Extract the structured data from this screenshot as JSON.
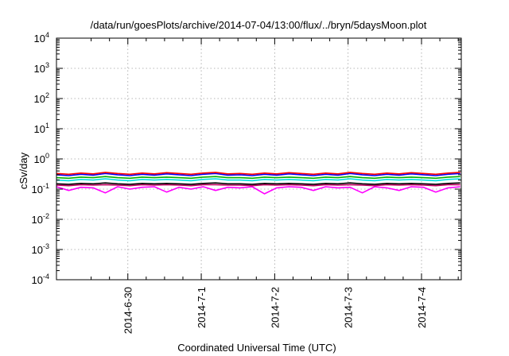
{
  "chart_data": {
    "type": "line",
    "title": "/data/run/goesPlots/archive/2014-07-04/13:00/flux/../bryn/5daysMoon.plot",
    "xlabel": "Coordinated Universal Time (UTC)",
    "ylabel": "cSv/day",
    "yscale": "log",
    "ylim": [
      0.0001,
      10000
    ],
    "xlim": [
      "2014-06-29 00:40",
      "2014-07-04 13:00"
    ],
    "x_ticks": [
      {
        "date": "2014-06-30",
        "label": "2014-6-30"
      },
      {
        "date": "2014-07-01",
        "label": "2014-7-1"
      },
      {
        "date": "2014-07-02",
        "label": "2014-7-2"
      },
      {
        "date": "2014-07-03",
        "label": "2014-7-3"
      },
      {
        "date": "2014-07-04",
        "label": "2014-7-4"
      }
    ],
    "y_ticks": [
      {
        "value": 0.0001,
        "base": "10",
        "exp": "-4"
      },
      {
        "value": 0.001,
        "base": "10",
        "exp": "-3"
      },
      {
        "value": 0.01,
        "base": "10",
        "exp": "-2"
      },
      {
        "value": 0.1,
        "base": "10",
        "exp": "-1"
      },
      {
        "value": 1,
        "base": "10",
        "exp": "0"
      },
      {
        "value": 10,
        "base": "10",
        "exp": "1"
      },
      {
        "value": 100,
        "base": "10",
        "exp": "2"
      },
      {
        "value": 1000,
        "base": "10",
        "exp": "3"
      },
      {
        "value": 10000,
        "base": "10",
        "exp": "4"
      }
    ],
    "grid": true,
    "legend": "none",
    "x": [
      "2014-06-29 00:40",
      "2014-06-29 04:40",
      "2014-06-29 08:40",
      "2014-06-29 12:40",
      "2014-06-29 16:40",
      "2014-06-29 20:40",
      "2014-06-30 00:40",
      "2014-06-30 04:40",
      "2014-06-30 08:40",
      "2014-06-30 12:40",
      "2014-06-30 16:40",
      "2014-06-30 20:40",
      "2014-07-01 00:40",
      "2014-07-01 04:40",
      "2014-07-01 08:40",
      "2014-07-01 12:40",
      "2014-07-01 16:40",
      "2014-07-01 20:40",
      "2014-07-02 00:40",
      "2014-07-02 04:40",
      "2014-07-02 08:40",
      "2014-07-02 12:40",
      "2014-07-02 16:40",
      "2014-07-02 20:40",
      "2014-07-03 00:40",
      "2014-07-03 04:40",
      "2014-07-03 08:40",
      "2014-07-03 12:40",
      "2014-07-03 16:40",
      "2014-07-03 20:40",
      "2014-07-04 00:40",
      "2014-07-04 04:40",
      "2014-07-04 08:40",
      "2014-07-04 12:40"
    ],
    "series": [
      {
        "color": "#ff0000",
        "values": [
          0.33,
          0.31,
          0.34,
          0.32,
          0.36,
          0.33,
          0.31,
          0.34,
          0.32,
          0.35,
          0.33,
          0.31,
          0.34,
          0.36,
          0.32,
          0.33,
          0.31,
          0.34,
          0.32,
          0.35,
          0.33,
          0.31,
          0.34,
          0.32,
          0.36,
          0.33,
          0.31,
          0.34,
          0.32,
          0.35,
          0.33,
          0.31,
          0.34,
          0.36
        ]
      },
      {
        "color": "#0000ff",
        "values": [
          0.3,
          0.28,
          0.31,
          0.29,
          0.33,
          0.3,
          0.28,
          0.31,
          0.29,
          0.32,
          0.3,
          0.28,
          0.31,
          0.33,
          0.29,
          0.3,
          0.28,
          0.31,
          0.29,
          0.32,
          0.3,
          0.28,
          0.31,
          0.29,
          0.33,
          0.3,
          0.28,
          0.31,
          0.29,
          0.32,
          0.3,
          0.28,
          0.31,
          0.33
        ]
      },
      {
        "color": "#00b000",
        "values": [
          0.24,
          0.23,
          0.25,
          0.24,
          0.26,
          0.24,
          0.23,
          0.25,
          0.24,
          0.25,
          0.24,
          0.23,
          0.25,
          0.26,
          0.24,
          0.24,
          0.23,
          0.25,
          0.24,
          0.25,
          0.24,
          0.23,
          0.25,
          0.24,
          0.26,
          0.24,
          0.23,
          0.25,
          0.24,
          0.25,
          0.24,
          0.23,
          0.25,
          0.26
        ]
      },
      {
        "color": "#00e0e0",
        "values": [
          0.2,
          0.19,
          0.21,
          0.2,
          0.22,
          0.2,
          0.19,
          0.21,
          0.2,
          0.21,
          0.2,
          0.19,
          0.21,
          0.22,
          0.2,
          0.2,
          0.19,
          0.21,
          0.2,
          0.21,
          0.2,
          0.19,
          0.21,
          0.2,
          0.22,
          0.2,
          0.19,
          0.21,
          0.2,
          0.21,
          0.2,
          0.19,
          0.21,
          0.22
        ]
      },
      {
        "color": "#000000",
        "values": [
          0.15,
          0.145,
          0.155,
          0.15,
          0.16,
          0.15,
          0.145,
          0.155,
          0.15,
          0.155,
          0.15,
          0.145,
          0.155,
          0.16,
          0.15,
          0.15,
          0.145,
          0.155,
          0.15,
          0.155,
          0.15,
          0.145,
          0.155,
          0.15,
          0.16,
          0.15,
          0.145,
          0.155,
          0.15,
          0.155,
          0.15,
          0.145,
          0.155,
          0.16
        ]
      },
      {
        "color": "#c00060",
        "values": [
          0.135,
          0.13,
          0.14,
          0.135,
          0.14,
          0.135,
          0.13,
          0.14,
          0.135,
          0.14,
          0.135,
          0.13,
          0.14,
          0.14,
          0.135,
          0.135,
          0.13,
          0.14,
          0.135,
          0.14,
          0.135,
          0.13,
          0.14,
          0.135,
          0.14,
          0.135,
          0.13,
          0.14,
          0.135,
          0.14,
          0.135,
          0.13,
          0.14,
          0.14
        ]
      },
      {
        "color": "#ff00ff",
        "values": [
          0.12,
          0.09,
          0.115,
          0.11,
          0.075,
          0.12,
          0.1,
          0.115,
          0.12,
          0.08,
          0.115,
          0.1,
          0.12,
          0.09,
          0.115,
          0.11,
          0.12,
          0.07,
          0.11,
          0.12,
          0.115,
          0.09,
          0.12,
          0.11,
          0.115,
          0.075,
          0.12,
          0.11,
          0.09,
          0.12,
          0.115,
          0.08,
          0.11,
          0.12
        ]
      }
    ]
  }
}
